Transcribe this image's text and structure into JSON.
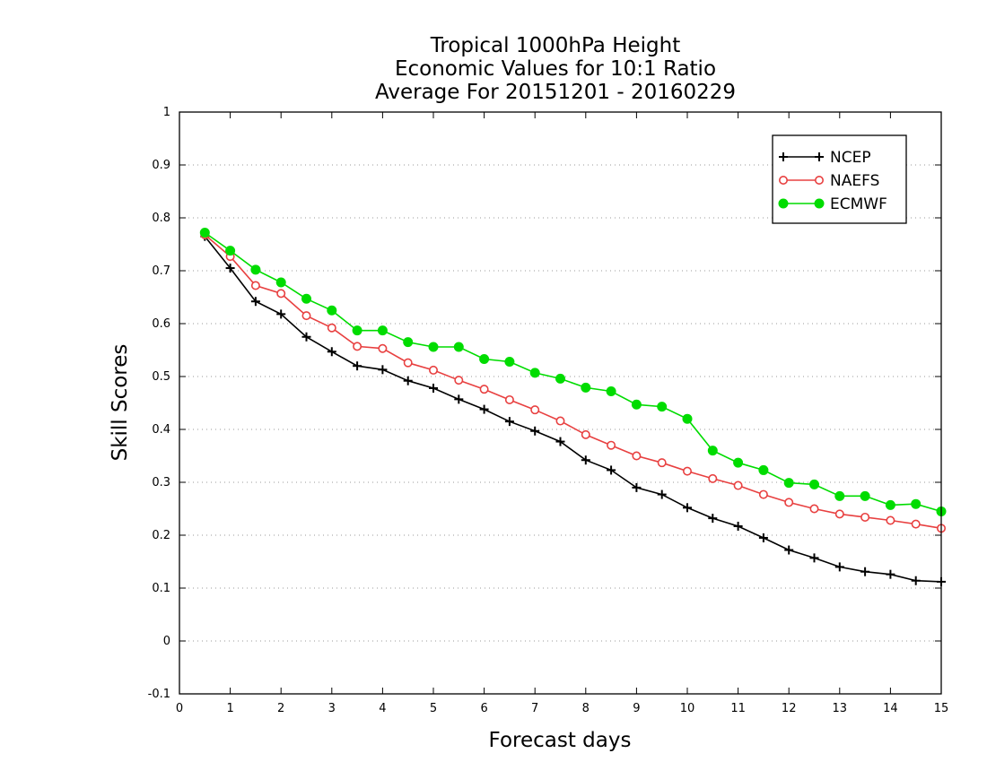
{
  "chart_data": {
    "type": "line",
    "title": [
      "Tropical 1000hPa Height",
      "Economic Values for 10:1 Ratio",
      "Average For 20151201 - 20160229"
    ],
    "xlabel": "Forecast days",
    "ylabel": "Skill Scores",
    "xlim": [
      0,
      15
    ],
    "ylim": [
      -0.1,
      1
    ],
    "xticks": [
      0,
      1,
      2,
      3,
      4,
      5,
      6,
      7,
      8,
      9,
      10,
      11,
      12,
      13,
      14,
      15
    ],
    "yticks": [
      -0.1,
      0,
      0.1,
      0.2,
      0.3,
      0.4,
      0.5,
      0.6,
      0.7,
      0.8,
      0.9,
      1
    ],
    "ytick_labels": [
      "-0.1",
      "0",
      "0.1",
      "0.2",
      "0.3",
      "0.4",
      "0.5",
      "0.6",
      "0.7",
      "0.8",
      "0.9",
      "1"
    ],
    "grid": "horizontal dotted",
    "legend_position": "top-right",
    "x": [
      0.5,
      1,
      1.5,
      2,
      2.5,
      3,
      3.5,
      4,
      4.5,
      5,
      5.5,
      6,
      6.5,
      7,
      7.5,
      8,
      8.5,
      9,
      9.5,
      10,
      10.5,
      11,
      11.5,
      12,
      12.5,
      13,
      13.5,
      14,
      14.5,
      15
    ],
    "series": [
      {
        "name": "NCEP",
        "color": "#000000",
        "marker": "plus",
        "values": [
          0.765,
          0.705,
          0.642,
          0.618,
          0.575,
          0.547,
          0.52,
          0.513,
          0.492,
          0.478,
          0.457,
          0.438,
          0.415,
          0.397,
          0.377,
          0.342,
          0.323,
          0.29,
          0.277,
          0.252,
          0.232,
          0.217,
          0.195,
          0.172,
          0.157,
          0.14,
          0.131,
          0.126,
          0.114,
          0.112
        ]
      },
      {
        "name": "NAEFS",
        "color": "#e84040",
        "marker": "open-circle",
        "values": [
          0.768,
          0.727,
          0.672,
          0.657,
          0.615,
          0.592,
          0.557,
          0.553,
          0.526,
          0.512,
          0.493,
          0.476,
          0.456,
          0.437,
          0.416,
          0.39,
          0.37,
          0.35,
          0.337,
          0.321,
          0.307,
          0.294,
          0.277,
          0.262,
          0.25,
          0.24,
          0.234,
          0.228,
          0.221,
          0.213
        ]
      },
      {
        "name": "ECMWF",
        "color": "#00dc00",
        "marker": "filled-circle",
        "values": [
          0.772,
          0.738,
          0.702,
          0.678,
          0.647,
          0.625,
          0.587,
          0.587,
          0.565,
          0.556,
          0.556,
          0.533,
          0.528,
          0.507,
          0.496,
          0.479,
          0.472,
          0.447,
          0.443,
          0.42,
          0.36,
          0.337,
          0.323,
          0.299,
          0.296,
          0.274,
          0.274,
          0.257,
          0.259,
          0.245
        ]
      }
    ]
  }
}
